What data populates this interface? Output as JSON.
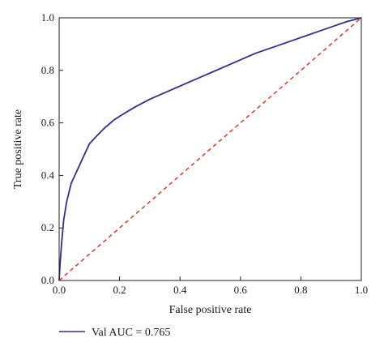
{
  "chart_data": {
    "type": "line",
    "xlabel": "False positive rate",
    "ylabel": "True positive rate",
    "xlim": [
      0,
      1
    ],
    "ylim": [
      0,
      1
    ],
    "x_ticks": [
      "0.0",
      "0.2",
      "0.4",
      "0.6",
      "0.8",
      "1.0"
    ],
    "y_ticks": [
      "0.0",
      "0.2",
      "0.4",
      "0.6",
      "0.8",
      "1.0"
    ],
    "grid": false,
    "legend_position": "bottom-left",
    "series": [
      {
        "name": "Val AUC = 0.765",
        "color": "#2e2e8f",
        "style": "solid",
        "x": [
          0.0,
          0.003,
          0.008,
          0.015,
          0.025,
          0.04,
          0.06,
          0.08,
          0.1,
          0.12,
          0.15,
          0.18,
          0.2,
          0.25,
          0.3,
          0.35,
          0.4,
          0.45,
          0.5,
          0.55,
          0.6,
          0.65,
          0.7,
          0.75,
          0.8,
          0.85,
          0.9,
          0.95,
          1.0
        ],
        "y": [
          0.0,
          0.06,
          0.14,
          0.23,
          0.3,
          0.37,
          0.42,
          0.47,
          0.52,
          0.545,
          0.58,
          0.61,
          0.625,
          0.66,
          0.69,
          0.715,
          0.74,
          0.765,
          0.79,
          0.815,
          0.84,
          0.865,
          0.885,
          0.905,
          0.925,
          0.945,
          0.965,
          0.985,
          1.0
        ]
      },
      {
        "name": "",
        "color": "#d63a2a",
        "style": "dashed",
        "x": [
          0.0,
          1.0
        ],
        "y": [
          0.0,
          1.0
        ]
      }
    ]
  }
}
